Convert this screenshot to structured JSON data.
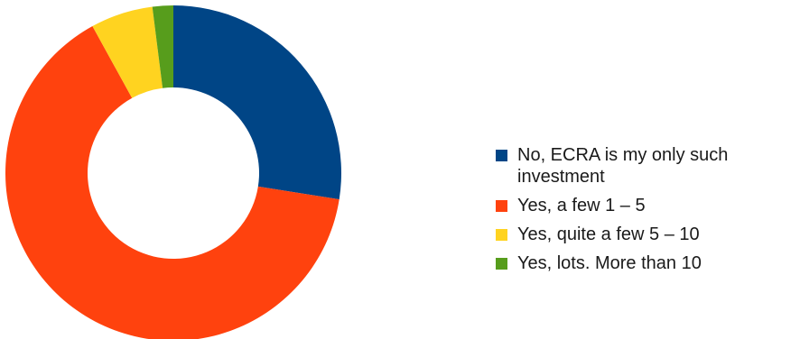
{
  "chart_data": {
    "type": "pie",
    "donut": true,
    "categories": [
      "No, ECRA is my only such investment",
      "Yes, a few 1 – 5",
      "Yes, quite a few 5 – 10",
      "Yes, lots.  More than 10"
    ],
    "values": [
      27.5,
      64.5,
      6,
      2
    ],
    "colors": [
      "#004586",
      "#ff420e",
      "#ffd320",
      "#579d1c"
    ],
    "legend_position": "right",
    "start_angle": "top",
    "direction": "clockwise"
  },
  "legend": {
    "items": [
      {
        "label": "No, ECRA is my only such investment",
        "color": "#004586"
      },
      {
        "label": "Yes, a few 1 – 5",
        "color": "#ff420e"
      },
      {
        "label": "Yes, quite a few 5 – 10",
        "color": "#ffd320"
      },
      {
        "label": "Yes, lots.  More than 10",
        "color": "#579d1c"
      }
    ]
  }
}
